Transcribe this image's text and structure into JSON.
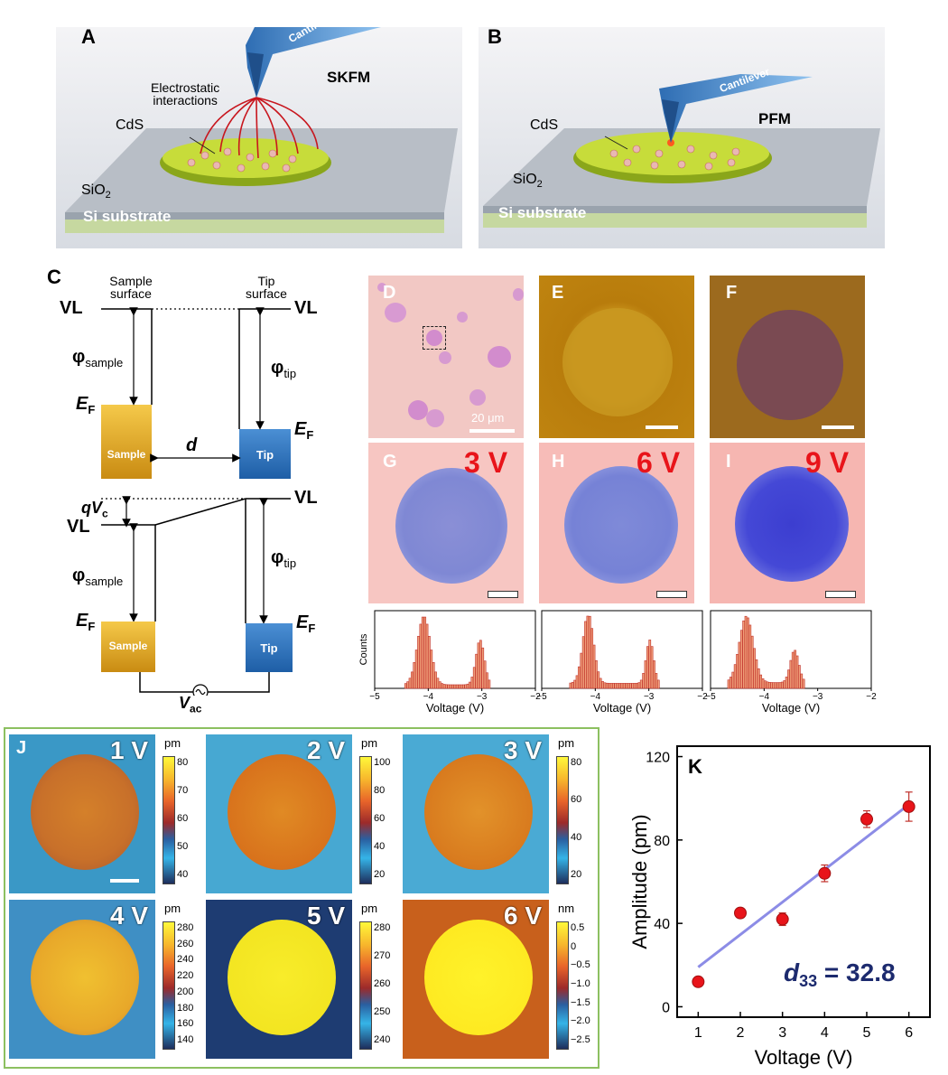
{
  "panelA": {
    "label": "A",
    "title": "SKFM",
    "cantilever": "Cantilever",
    "interactions_line1": "Electrostatic",
    "interactions_line2": "interactions",
    "material": "CdS",
    "oxide": "SiO",
    "oxide_sub": "2",
    "substrate": "Si substrate"
  },
  "panelB": {
    "label": "B",
    "title": "PFM",
    "cantilever": "Cantilever",
    "material": "CdS",
    "oxide": "SiO",
    "oxide_sub": "2",
    "substrate": "Si substrate"
  },
  "panelC": {
    "label": "C",
    "sample_surface_l1": "Sample",
    "sample_surface_l2": "surface",
    "tip_surface_l1": "Tip",
    "tip_surface_l2": "surface",
    "vl": "VL",
    "phi": "φ",
    "phi_sample_sub": "sample",
    "phi_tip_sub": "tip",
    "ef": "E",
    "ef_sub": "F",
    "sample_box": "Sample",
    "tip_box": "Tip",
    "d": "d",
    "qvc_q": "qV",
    "qvc_sub": "c",
    "vac_v": "V",
    "vac_sub": "ac"
  },
  "panelD": {
    "label": "D",
    "scale": "20 μm"
  },
  "panelE": {
    "label": "E"
  },
  "panelF": {
    "label": "F"
  },
  "panelGHI": [
    {
      "label": "G",
      "voltage": "3 V"
    },
    {
      "label": "H",
      "voltage": "6 V"
    },
    {
      "label": "I",
      "voltage": "9 V"
    }
  ],
  "histograms": {
    "ylabel": "Counts",
    "xlabel": "Voltage (V)",
    "ticks": [
      "−5",
      "−4",
      "−3",
      "−2"
    ],
    "xrange": [
      -5,
      -2
    ]
  },
  "panelJ": {
    "label": "J",
    "tiles": [
      {
        "voltage": "1 V",
        "unit": "pm",
        "ticks": [
          "80",
          "70",
          "60",
          "50",
          "40"
        ]
      },
      {
        "voltage": "2 V",
        "unit": "pm",
        "ticks": [
          "100",
          "80",
          "60",
          "40",
          "20"
        ]
      },
      {
        "voltage": "3 V",
        "unit": "pm",
        "ticks": [
          "80",
          "60",
          "40",
          "20"
        ]
      },
      {
        "voltage": "4 V",
        "unit": "pm",
        "ticks": [
          "280",
          "260",
          "240",
          "220",
          "200",
          "180",
          "160",
          "140"
        ]
      },
      {
        "voltage": "5 V",
        "unit": "pm",
        "ticks": [
          "280",
          "270",
          "260",
          "250",
          "240"
        ]
      },
      {
        "voltage": "6 V",
        "unit": "nm",
        "ticks": [
          "0.5",
          "0",
          "−0.5",
          "−1.0",
          "−1.5",
          "−2.0",
          "−2.5"
        ]
      }
    ]
  },
  "chart_data": {
    "type": "scatter",
    "label": "K",
    "xlabel": "Voltage (V)",
    "ylabel": "Amplitude (pm)",
    "annotation_d": "d",
    "annotation_sub": "33",
    "annotation_rest": " = 32.8",
    "x": [
      1,
      2,
      3,
      4,
      5,
      6
    ],
    "y": [
      12,
      45,
      42,
      64,
      90,
      96
    ],
    "yerr": [
      2,
      2,
      3,
      4,
      4,
      7
    ],
    "fit": {
      "x": [
        1,
        6
      ],
      "y": [
        19,
        97
      ]
    },
    "xlim": [
      0.5,
      6.5
    ],
    "ylim": [
      -5,
      125
    ],
    "xticks": [
      1,
      2,
      3,
      4,
      5,
      6
    ],
    "yticks": [
      0,
      40,
      80,
      120
    ],
    "colors": {
      "points": "#e8141a",
      "fit": "#8c8ce6",
      "annotation": "#1c2a6e"
    }
  }
}
